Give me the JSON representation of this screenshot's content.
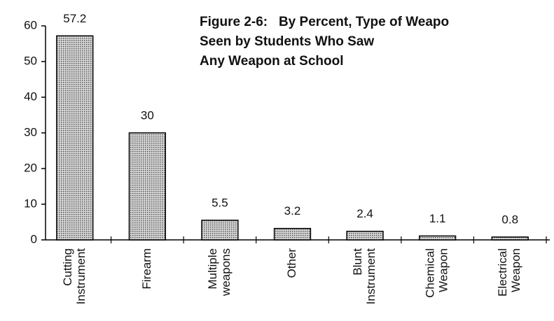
{
  "chart_data": {
    "type": "bar",
    "title": [
      "Figure 2-6:   By Percent, Type of Weapo",
      "Seen by Students Who Saw",
      "Any Weapon at School"
    ],
    "categories": [
      [
        "Cutting",
        "Instrument"
      ],
      [
        "Firearm"
      ],
      [
        "Multiple",
        "weapons"
      ],
      [
        "Other"
      ],
      [
        "Blunt",
        "Instrument"
      ],
      [
        "Chemical",
        "Weapon"
      ],
      [
        "Electrical",
        "Weapon"
      ]
    ],
    "values": [
      57.2,
      30,
      5.5,
      3.2,
      2.4,
      1.1,
      0.8
    ],
    "color": "#b0b0b0",
    "ylim": [
      0,
      60
    ],
    "yticks": [
      0,
      10,
      20,
      30,
      40,
      50,
      60
    ],
    "grid": false
  }
}
